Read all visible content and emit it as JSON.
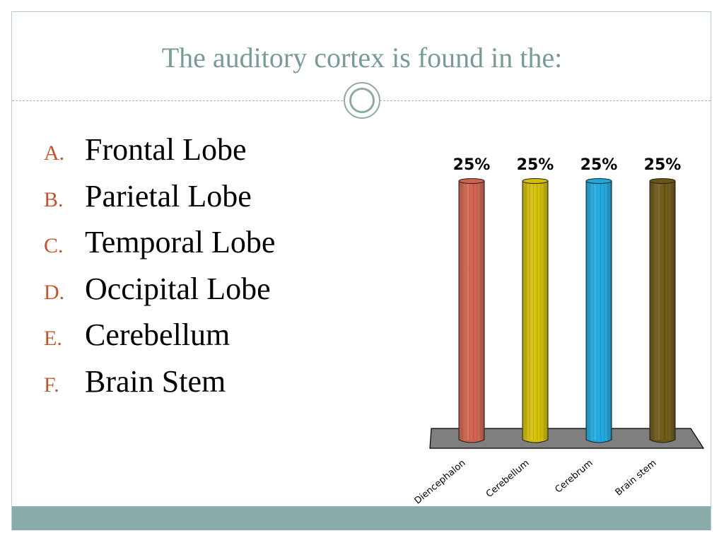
{
  "slide": {
    "title": "The auditory cortex is found in the:",
    "options": [
      {
        "letter": "A.",
        "text": "Frontal Lobe"
      },
      {
        "letter": "B.",
        "text": "Parietal Lobe"
      },
      {
        "letter": "C.",
        "text": "Temporal Lobe"
      },
      {
        "letter": "D.",
        "text": "Occipital Lobe"
      },
      {
        "letter": "E.",
        "text": "Cerebellum"
      },
      {
        "letter": "F.",
        "text": "Brain Stem"
      }
    ]
  },
  "colors": {
    "title": "#7a9a98",
    "option_letter": "#c0562f",
    "footer": "#8aabab",
    "floor": "#7f7f7f"
  },
  "chart_data": {
    "type": "bar",
    "categories": [
      "Diencephalon",
      "Cerebellum",
      "Cerebrum",
      "Brain stem"
    ],
    "values": [
      25,
      25,
      25,
      25
    ],
    "value_labels": [
      "25%",
      "25%",
      "25%",
      "25%"
    ],
    "colors": [
      "#d0614c",
      "#d3be00",
      "#1aa9df",
      "#6b5512"
    ],
    "ylim": [
      0,
      25
    ],
    "grid": false,
    "legend": "none"
  }
}
